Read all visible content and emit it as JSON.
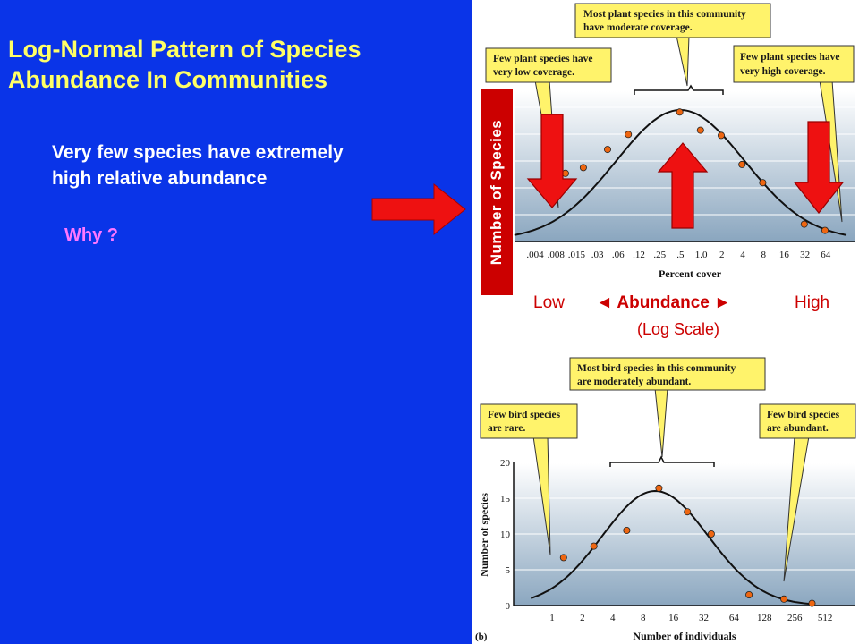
{
  "slide": {
    "title_lines": [
      "Log-Normal Pattern of Species",
      "Abundance In Communities"
    ],
    "statement_lines": [
      "Very few species have extremely",
      "high relative abundance"
    ],
    "question": "Why ?"
  },
  "overlay": {
    "vertical_label": "Number of Species",
    "low": "Low",
    "abundance": "◄ Abundance ►",
    "high": "High",
    "scale": "(Log Scale)"
  },
  "colors": {
    "background": "#0a34e8",
    "title": "#ffff66",
    "question": "#ff77ff",
    "arrow": "#ee1111",
    "callout": "#fff36b",
    "point": "#ee6611"
  },
  "chart_data": [
    {
      "type": "scatter",
      "panel_label": "",
      "xlabel": "Percent cover",
      "ylabel": "",
      "x_scale": "log",
      "x": [
        0.008,
        0.011,
        0.02,
        0.045,
        0.09,
        0.5,
        1.0,
        2.0,
        4.0,
        8.0,
        32.0,
        64.0
      ],
      "y": [
        9.5,
        12.8,
        13.9,
        17.4,
        20.3,
        24.6,
        21.1,
        20.1,
        14.5,
        11.0,
        3.0,
        1.8
      ],
      "fit": "log-normal curve",
      "tick_labels": [
        ".004",
        ".008",
        ".015",
        ".03",
        ".06",
        ".12",
        ".25",
        ".5",
        "1.0",
        "2",
        "4",
        "8",
        "16",
        "32",
        "64"
      ],
      "callouts": [
        {
          "text": [
            "Most plant species in this community",
            "have moderate coverage."
          ]
        },
        {
          "text": [
            "Few plant species have",
            "very low coverage."
          ]
        },
        {
          "text": [
            "Few plant species have",
            "very high coverage."
          ]
        }
      ]
    },
    {
      "type": "scatter",
      "panel_label": "(b)",
      "xlabel": "Number of individuals",
      "ylabel": "Number of species",
      "x_scale": "log2",
      "x": [
        1.3,
        2.6,
        5.5,
        11.5,
        22,
        38,
        90,
        200,
        380
      ],
      "y": [
        6.7,
        8.3,
        10.5,
        16.4,
        13.1,
        10.0,
        1.5,
        0.9,
        0.3
      ],
      "fit": "log-normal curve",
      "ylim": [
        0,
        20
      ],
      "y_tick_labels": [
        "0",
        "5",
        "10",
        "15",
        "20"
      ],
      "tick_labels": [
        "1",
        "2",
        "4",
        "8",
        "16",
        "32",
        "64",
        "128",
        "256",
        "512"
      ],
      "callouts": [
        {
          "text": [
            "Most bird species in this community",
            "are moderately abundant."
          ]
        },
        {
          "text": [
            "Few bird species",
            "are rare."
          ]
        },
        {
          "text": [
            "Few bird species",
            "are abundant."
          ]
        }
      ]
    }
  ]
}
